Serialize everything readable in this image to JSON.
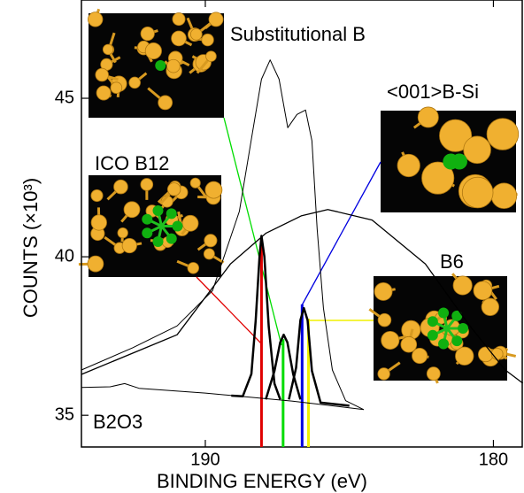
{
  "chart_data": {
    "type": "line",
    "x_label": "BINDING ENERGY (eV)",
    "y_label": "COUNTS (×10³)",
    "xlim": [
      194.3,
      179.0
    ],
    "ylim": [
      34.0,
      48.1
    ],
    "xticks": [
      190,
      180
    ],
    "yticks": [
      35,
      40,
      45
    ],
    "series": [
      {
        "color": "#000000",
        "line_width": 1,
        "x": [
          194.3,
          192.52,
          190.98,
          189.75,
          188.82,
          188.36,
          188.05,
          187.75,
          187.44,
          187.14,
          186.82,
          186.52,
          186.3,
          186.12,
          185.9,
          185.59,
          185.13,
          184.51
        ],
        "values": [
          36.43,
          37.13,
          37.82,
          38.93,
          41.43,
          43.93,
          45.6,
          46.21,
          45.6,
          44.07,
          44.49,
          44.63,
          43.66,
          40.88,
          38.38,
          36.43,
          35.46,
          35.18
        ]
      },
      {
        "color": "#000000",
        "line_width": 1.3,
        "x": [
          194.3,
          190.98,
          189.13,
          187.9,
          186.67,
          185.75,
          184.21,
          182.36,
          180.82,
          179.59,
          178.98
        ],
        "values": [
          36.29,
          37.54,
          39.77,
          40.74,
          41.29,
          41.49,
          41.16,
          39.77,
          37.82,
          36.43,
          36.01
        ]
      },
      {
        "color": "#000000",
        "line_width": 1,
        "x": [
          194.3,
          193.3,
          192.8,
          192.3,
          190.0,
          187.0,
          184.5
        ],
        "values": [
          35.88,
          35.9,
          36.0,
          35.85,
          35.7,
          35.45,
          35.18
        ]
      },
      {
        "color": "#000000",
        "line_width": 2.5,
        "x": [
          189.1,
          188.7,
          188.4,
          188.25,
          188.12,
          188.05,
          187.95,
          187.8,
          187.6,
          187.4
        ],
        "values": [
          35.62,
          35.6,
          36.3,
          38.0,
          40.0,
          40.66,
          40.0,
          37.8,
          36.0,
          35.5
        ]
      },
      {
        "color": "#000000",
        "line_width": 2.5,
        "x": [
          187.9,
          187.6,
          187.4,
          187.28,
          187.15,
          186.95,
          186.7
        ],
        "values": [
          35.5,
          36.4,
          37.3,
          37.54,
          37.3,
          36.3,
          35.5
        ]
      },
      {
        "color": "#000000",
        "line_width": 2.5,
        "x": [
          187.1,
          186.85,
          186.7,
          186.58,
          186.45,
          186.3,
          186.0,
          185.0
        ],
        "values": [
          35.5,
          36.5,
          38.0,
          38.38,
          38.0,
          36.4,
          35.4,
          35.3
        ]
      }
    ],
    "markers": [
      {
        "x": 188.05,
        "top": 40.6,
        "color": "#e00000"
      },
      {
        "x": 187.3,
        "top": 37.4,
        "color": "#00dd00"
      },
      {
        "x": 186.64,
        "top": 38.5,
        "color": "#0000e0"
      },
      {
        "x": 186.42,
        "top": 38.05,
        "color": "#f0f000"
      }
    ],
    "annotations": [
      "Substitutional B",
      "<001>B-Si",
      "ICO B12",
      "B6",
      "B2O3"
    ]
  }
}
